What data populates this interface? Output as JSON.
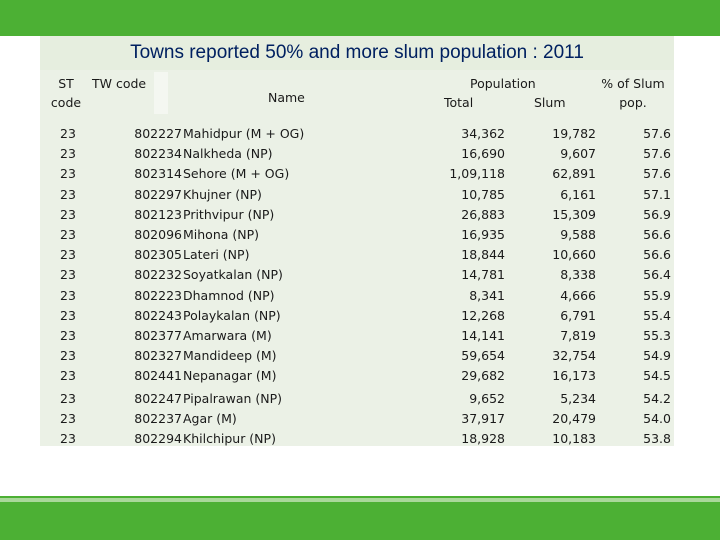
{
  "title": "Towns reported 50% and more slum population : 2011",
  "headers": {
    "st_code_line1": "ST",
    "st_code_line2": "code",
    "tw_code": "TW code",
    "name": "Name",
    "population": "Population",
    "total": "Total",
    "slum": "Slum",
    "pct_line1": "% of Slum",
    "pct_line2": "pop."
  },
  "rows": [
    {
      "st": "23",
      "code": "802227",
      "name": "Mahidpur (M + OG)",
      "total": "34,362",
      "slum": "19,782",
      "pct": "57.6"
    },
    {
      "st": "23",
      "code": "802234",
      "name": "Nalkheda (NP)",
      "total": "16,690",
      "slum": "9,607",
      "pct": "57.6"
    },
    {
      "st": "23",
      "code": "802314",
      "name": "Sehore (M + OG)",
      "total": "1,09,118",
      "slum": "62,891",
      "pct": "57.6"
    },
    {
      "st": "23",
      "code": "802297",
      "name": "Khujner (NP)",
      "total": "10,785",
      "slum": "6,161",
      "pct": "57.1"
    },
    {
      "st": "23",
      "code": "802123",
      "name": "Prithvipur (NP)",
      "total": "26,883",
      "slum": "15,309",
      "pct": "56.9"
    },
    {
      "st": "23",
      "code": "802096",
      "name": "Mihona (NP)",
      "total": "16,935",
      "slum": "9,588",
      "pct": "56.6"
    },
    {
      "st": "23",
      "code": "802305",
      "name": "Lateri (NP)",
      "total": "18,844",
      "slum": "10,660",
      "pct": "56.6"
    },
    {
      "st": "23",
      "code": "802232",
      "name": "Soyatkalan (NP)",
      "total": "14,781",
      "slum": "8,338",
      "pct": "56.4"
    },
    {
      "st": "23",
      "code": "802223",
      "name": "Dhamnod (NP)",
      "total": "8,341",
      "slum": "4,666",
      "pct": "55.9"
    },
    {
      "st": "23",
      "code": "802243",
      "name": "Polaykalan (NP)",
      "total": "12,268",
      "slum": "6,791",
      "pct": "55.4"
    },
    {
      "st": "23",
      "code": "802377",
      "name": "Amarwara (M)",
      "total": "14,141",
      "slum": "7,819",
      "pct": "55.3"
    },
    {
      "st": "23",
      "code": "802327",
      "name": "Mandideep (M)",
      "total": "59,654",
      "slum": "32,754",
      "pct": "54.9"
    },
    {
      "st": "23",
      "code": "802441",
      "name": "Nepanagar (M)",
      "total": "29,682",
      "slum": "16,173",
      "pct": "54.5"
    },
    {
      "st": "23",
      "code": "802247",
      "name": "Pipalrawan (NP)",
      "total": "9,652",
      "slum": "5,234",
      "pct": "54.2"
    },
    {
      "st": "23",
      "code": "802237",
      "name": "Agar (M)",
      "total": "37,917",
      "slum": "20,479",
      "pct": "54.0"
    },
    {
      "st": "23",
      "code": "802294",
      "name": "Khilchipur (NP)",
      "total": "18,928",
      "slum": "10,183",
      "pct": "53.8"
    }
  ],
  "colors": {
    "accent_green": "#4cb034",
    "title_blue": "#002060",
    "panel_bg": "#ebf1e6"
  }
}
